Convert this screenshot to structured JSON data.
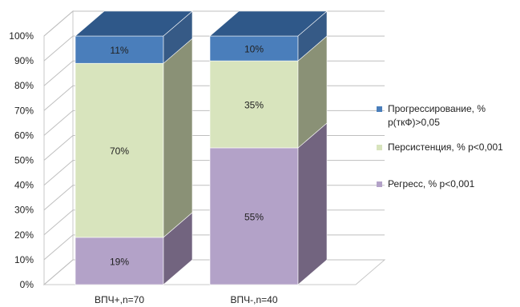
{
  "chart_data": {
    "type": "bar",
    "stacked": true,
    "three_d": true,
    "categories": [
      "ВПЧ+,n=70",
      "ВПЧ-,n=40"
    ],
    "series": [
      {
        "name": "Регресс, %  р<0,001",
        "values": [
          19,
          55
        ],
        "labels": [
          "19%",
          "55%"
        ],
        "color": "#b3a2c8",
        "side": "#72647f",
        "top": "#9a8ab0"
      },
      {
        "name": "Персистенция, %  р<0,001",
        "values": [
          70,
          35
        ],
        "labels": [
          "70%",
          "35%"
        ],
        "color": "#d8e4bd",
        "side": "#8a9176",
        "top": "#c3cfa8"
      },
      {
        "name_lines": [
          "Прогрессирование, %",
          "р(ткФ)>0,05"
        ],
        "values": [
          11,
          10
        ],
        "labels": [
          "11%",
          "10%"
        ],
        "color": "#4a7ebb",
        "side": "#365a86",
        "top": "#2f5889"
      }
    ],
    "y_ticks": [
      "0%",
      "10%",
      "20%",
      "30%",
      "40%",
      "50%",
      "60%",
      "70%",
      "80%",
      "90%",
      "100%"
    ],
    "ylim": [
      0,
      100
    ],
    "grid": true,
    "legend_position": "right"
  }
}
